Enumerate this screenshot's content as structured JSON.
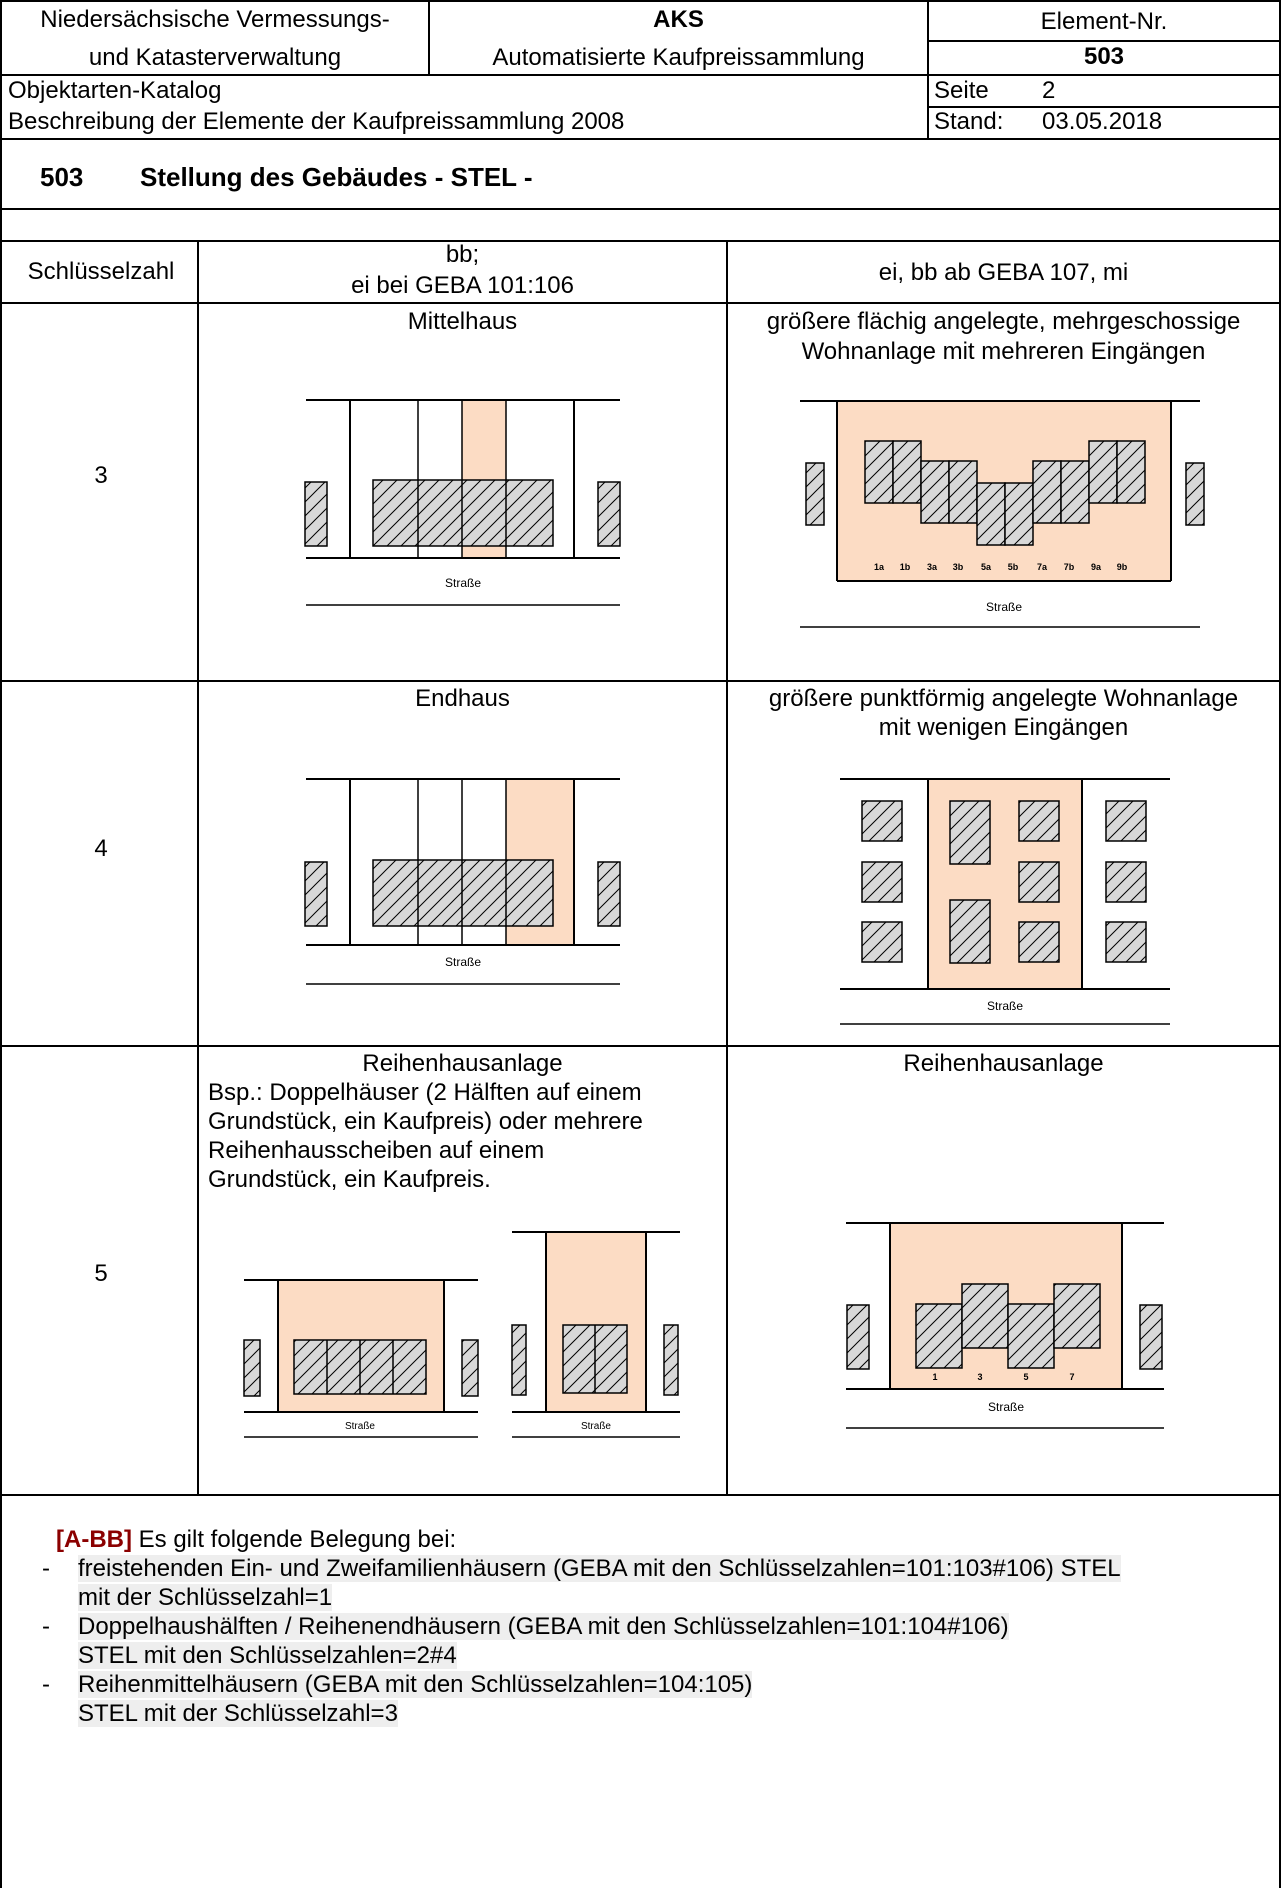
{
  "header": {
    "agency_line1": "Niedersächsische Vermessungs-",
    "agency_line2": "und Katasterverwaltung",
    "system_abbr": "AKS",
    "system_name": "Automatisierte Kaufpreissammlung",
    "element_label": "Element-Nr.",
    "element_no": "503",
    "catalog_line1": "Objektarten-Katalog",
    "catalog_line2": "Beschreibung der Elemente der Kaufpreissammlung 2008",
    "page_label": "Seite",
    "page_no": "2",
    "date_label": "Stand:",
    "date_value": "03.05.2018"
  },
  "section": {
    "number": "503",
    "title": "Stellung des Gebäudes - STEL -"
  },
  "table": {
    "col_key": "Schlüsselzahl",
    "col_a_line1": "bb;",
    "col_a_line2": "ei bei GEBA 101:106",
    "col_b": "ei, bb ab GEBA 107, mi",
    "rows": [
      {
        "key": "3",
        "a_title": "Mittelhaus",
        "b_title_line1": "größere flächig angelegte, mehrgeschossige",
        "b_title_line2": "Wohnanlage mit mehreren Eingängen"
      },
      {
        "key": "4",
        "a_title": "Endhaus",
        "b_title_line1": "größere punktförmig angelegte Wohnanlage",
        "b_title_line2": "mit wenigen Eingängen"
      },
      {
        "key": "5",
        "a_title": "Reihenhausanlage",
        "a_desc": [
          "Bsp.: Doppelhäuser (2 Hälften auf einem",
          "Grundstück, ein Kaufpreis) oder mehrere",
          "Reihenhausscheiben auf einem",
          "Grundstück, ein Kaufpreis."
        ],
        "b_title_line1": "Reihenhausanlage"
      }
    ]
  },
  "figures": {
    "street": "Straße",
    "wohnanlage_numbers": [
      "1a",
      "1b",
      "3a",
      "3b",
      "5a",
      "5b",
      "7a",
      "7b",
      "9a",
      "9b"
    ],
    "reihen_numbers": [
      "1",
      "3",
      "5",
      "7"
    ],
    "colors": {
      "plot_fill": "#fcdcc4",
      "house_fill": "#d8d8d8",
      "stroke": "#000000"
    }
  },
  "notes": {
    "tag": "[A-BB]",
    "intro": " Es gilt folgende Belegung bei:",
    "items": [
      {
        "line1": "freistehenden Ein- und Zweifamilienhäusern (GEBA mit den Schlüsselzahlen=101:103#106) STEL",
        "line2": "mit der Schlüsselzahl=1"
      },
      {
        "line1": "Doppelhaushälften / Reihenendhäusern (GEBA mit den Schlüsselzahlen=101:104#106)",
        "line2": "STEL mit den Schlüsselzahlen=2#4"
      },
      {
        "line1": "Reihenmittelhäusern (GEBA mit den Schlüsselzahlen=104:105)",
        "line2": "STEL mit der Schlüsselzahl=3"
      }
    ]
  }
}
